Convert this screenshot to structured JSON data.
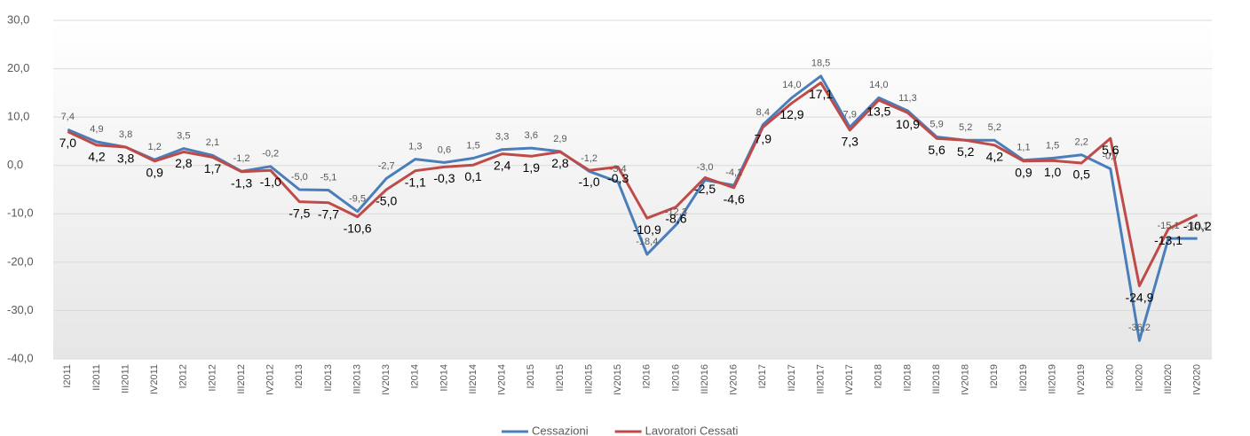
{
  "chart_data": {
    "type": "line",
    "categories": [
      "I2011",
      "II2011",
      "III2011",
      "IV2011",
      "I2012",
      "II2012",
      "III2012",
      "IV2012",
      "I2013",
      "II2013",
      "III2013",
      "IV2013",
      "I2014",
      "II2014",
      "III2014",
      "IV2014",
      "I2015",
      "II2015",
      "III2015",
      "IV2015",
      "I2016",
      "II2016",
      "III2016",
      "IV2016",
      "I2017",
      "II2017",
      "III2017",
      "IV2017",
      "I2018",
      "II2018",
      "III2018",
      "IV2018",
      "I2019",
      "II2019",
      "III2019",
      "IV2019",
      "I2020",
      "II2020",
      "III2020",
      "IV2020"
    ],
    "series": [
      {
        "name": "Cessazioni",
        "color": "#4a7ebb",
        "values": [
          7.4,
          4.9,
          3.8,
          1.2,
          3.5,
          2.1,
          -1.2,
          -0.2,
          -5.0,
          -5.1,
          -9.5,
          -2.7,
          1.3,
          0.6,
          1.5,
          3.3,
          3.6,
          2.9,
          -1.2,
          -3.4,
          -18.4,
          -12.3,
          -3.0,
          -4.1,
          8.4,
          14.0,
          18.5,
          7.9,
          14.0,
          11.3,
          5.9,
          5.2,
          5.2,
          1.1,
          1.5,
          2.2,
          -0.7,
          -36.2,
          -15.1,
          -15.1
        ],
        "value_labels": [
          "7,4",
          "4,9",
          "3,8",
          "1,2",
          "3,5",
          "2,1",
          "-1,2",
          "-0,2",
          "-5,0",
          "-5,1",
          "-9,5",
          "-2,7",
          "1,3",
          "0,6",
          "1,5",
          "3,3",
          "3,6",
          "2,9",
          "-1,2",
          "-3,4",
          "-18,4",
          "-12,3",
          "-3,0",
          "-4,1",
          "8,4",
          "14,0",
          "18,5",
          "7,9",
          "14,0",
          "11,3",
          "5,9",
          "5,2",
          "5,2",
          "1,1",
          "1,5",
          "2,2",
          "-0,7",
          "-36,2",
          "-15,1",
          "-15,1"
        ]
      },
      {
        "name": "Lavoratori Cessati",
        "color": "#be4b48",
        "values": [
          7.0,
          4.2,
          3.8,
          0.9,
          2.8,
          1.7,
          -1.3,
          -1.0,
          -7.5,
          -7.7,
          -10.6,
          -5.0,
          -1.1,
          -0.3,
          0.1,
          2.4,
          1.9,
          2.8,
          -1.0,
          -0.3,
          -10.9,
          -8.6,
          -2.5,
          -4.6,
          7.9,
          12.9,
          17.1,
          7.3,
          13.5,
          10.9,
          5.6,
          5.2,
          4.2,
          0.9,
          1.0,
          0.5,
          5.6,
          -24.9,
          -13.1,
          -10.2
        ],
        "value_labels": [
          "7,0",
          "4,2",
          "3,8",
          "0,9",
          "2,8",
          "1,7",
          "-1,3",
          "-1,0",
          "-7,5",
          "-7,7",
          "-10,6",
          "-5,0",
          "-1,1",
          "-0,3",
          "0,1",
          "2,4",
          "1,9",
          "2,8",
          "-1,0",
          "-0,3",
          "-10,9",
          "-8,6",
          "-2,5",
          "-4,6",
          "7,9",
          "12,9",
          "17,1",
          "7,3",
          "13,5",
          "10,9",
          "5,6",
          "5,2",
          "4,2",
          "0,9",
          "1,0",
          "0,5",
          "5,6",
          "-24,9",
          "-13,1",
          "-10,2"
        ]
      }
    ],
    "ylim": [
      -40,
      30
    ],
    "yticks": [
      {
        "value": -40,
        "label": "-40,0"
      },
      {
        "value": -30,
        "label": "-30,0"
      },
      {
        "value": -20,
        "label": "-20,0"
      },
      {
        "value": -10,
        "label": "-10,0"
      },
      {
        "value": 0,
        "label": "0,0"
      },
      {
        "value": 10,
        "label": "10,0"
      },
      {
        "value": 20,
        "label": "20,0"
      },
      {
        "value": 30,
        "label": "30,0"
      }
    ],
    "grid": true,
    "legend": "bottom"
  }
}
